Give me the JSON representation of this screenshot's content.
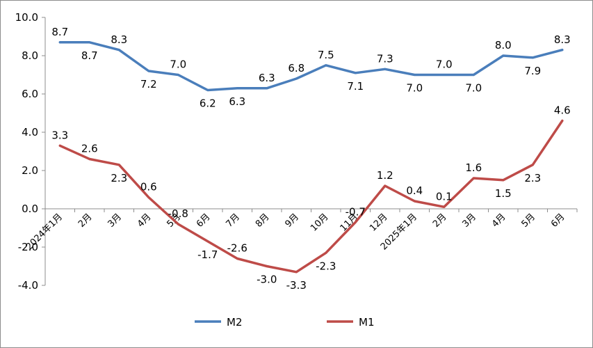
{
  "chart_data": {
    "type": "line",
    "title": "",
    "xlabel": "",
    "ylabel": "",
    "categories": [
      "2024年1月",
      "2月",
      "3月",
      "4月",
      "5月",
      "6月",
      "7月",
      "8月",
      "9月",
      "10月",
      "11月",
      "12月",
      "2025年1月",
      "2月",
      "3月",
      "4月",
      "5月",
      "6月"
    ],
    "ylim": [
      -4.0,
      10.0
    ],
    "yticks": [
      "10.0",
      "8.0",
      "6.0",
      "4.0",
      "2.0",
      "0.0",
      "-2.0",
      "-4.0"
    ],
    "grid": false,
    "legend": "bottom",
    "series": [
      {
        "name": "M2",
        "color": "#4a7ebb",
        "values": [
          8.7,
          8.7,
          8.3,
          7.2,
          7.0,
          6.2,
          6.3,
          6.3,
          6.8,
          7.5,
          7.1,
          7.3,
          7.0,
          7.0,
          7.0,
          8.0,
          7.9,
          8.3
        ],
        "labels": [
          "8.7",
          "8.7",
          "8.3",
          "7.2",
          "7.0",
          "6.2",
          "6.3",
          "6.3",
          "6.8",
          "7.5",
          "7.1",
          "7.3",
          "7.0",
          "7.0",
          "7.0",
          "8.0",
          "7.9",
          "8.3"
        ]
      },
      {
        "name": "M1",
        "color": "#be4b48",
        "values": [
          3.3,
          2.6,
          2.3,
          0.6,
          -0.8,
          -1.7,
          -2.6,
          -3.0,
          -3.3,
          -2.3,
          -0.7,
          1.2,
          0.4,
          0.1,
          1.6,
          1.5,
          2.3,
          4.6
        ],
        "labels": [
          "3.3",
          "2.6",
          "2.3",
          "0.6",
          "-0.8",
          "-1.7",
          "-2.6",
          "-3.0",
          "-3.3",
          "-2.3",
          "-0.7",
          "1.2",
          "0.4",
          "0.1",
          "1.6",
          "1.5",
          "2.3",
          "4.6"
        ]
      }
    ]
  }
}
